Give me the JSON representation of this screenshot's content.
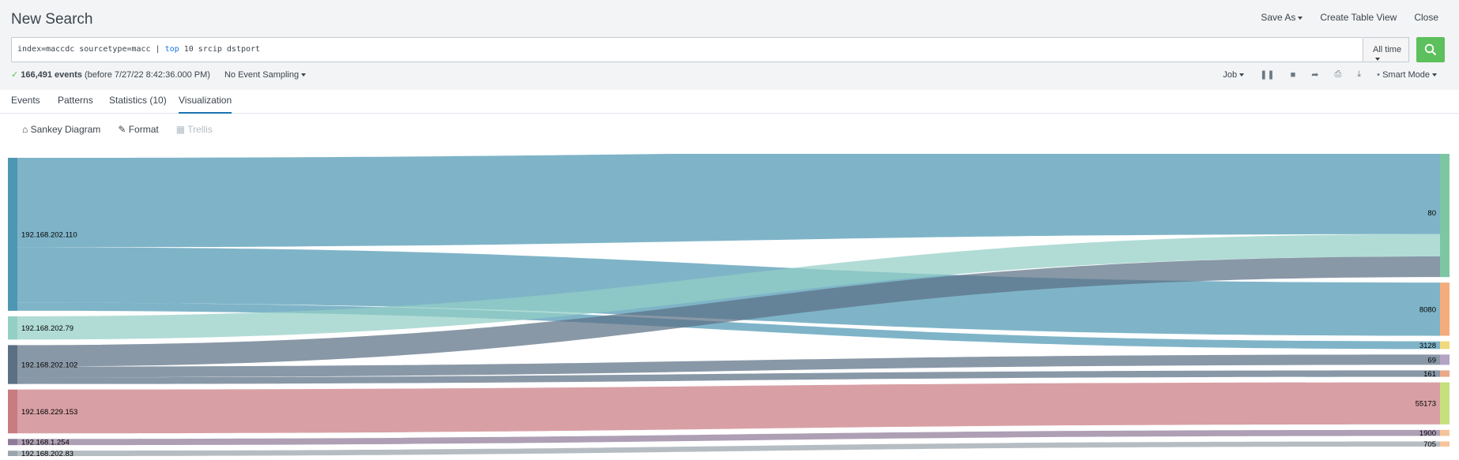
{
  "header": {
    "title": "New Search",
    "save_as": "Save As",
    "create_table_view": "Create Table View",
    "close": "Close"
  },
  "search": {
    "query_prefix": "index=maccdc sourcetype=macc | ",
    "query_keyword": "top",
    "query_suffix": " 10 srcip dstport",
    "time_range": "All time"
  },
  "status": {
    "event_count": "166,491 events",
    "time_note": "(before 7/27/22 8:42:36.000 PM)",
    "sampling": "No Event Sampling"
  },
  "job_controls": {
    "job": "Job",
    "mode": "Smart Mode"
  },
  "tabs": [
    {
      "label": "Events"
    },
    {
      "label": "Patterns"
    },
    {
      "label": "Statistics (10)"
    },
    {
      "label": "Visualization"
    }
  ],
  "viz_toolbar": {
    "type": "Sankey Diagram",
    "format": "Format",
    "trellis": "Trellis"
  },
  "chart_data": {
    "type": "sankey",
    "sources": [
      "192.168.202.110",
      "192.168.202.79",
      "192.168.202.102",
      "192.168.229.153",
      "192.168.1.254",
      "192.168.202.83"
    ],
    "targets": [
      "80",
      "8080",
      "3128",
      "69",
      "161",
      "55173",
      "1900",
      "705"
    ],
    "links": [
      {
        "source": "192.168.202.110",
        "target": "80",
        "value": 100000
      },
      {
        "source": "192.168.202.110",
        "target": "8080",
        "value": 62000
      },
      {
        "source": "192.168.202.110",
        "target": "3128",
        "value": 9000
      },
      {
        "source": "192.168.202.79",
        "target": "80",
        "value": 26000
      },
      {
        "source": "192.168.202.102",
        "target": "80",
        "value": 24000
      },
      {
        "source": "192.168.202.102",
        "target": "69",
        "value": 12000
      },
      {
        "source": "192.168.202.102",
        "target": "161",
        "value": 7500
      },
      {
        "source": "192.168.229.153",
        "target": "55173",
        "value": 49000
      },
      {
        "source": "192.168.1.254",
        "target": "1900",
        "value": 7000
      },
      {
        "source": "192.168.202.83",
        "target": "705",
        "value": 6000
      }
    ],
    "source_colors": [
      "#4e97b3",
      "#93cfc5",
      "#5c7085",
      "#c97b82",
      "#8f7a99",
      "#9aa4ab"
    ],
    "target_colors": [
      "#7dc6a3",
      "#f4ac7c",
      "#f0d97c",
      "#b4a3c4",
      "#e9a98a",
      "#c6e07c",
      "#f6c49a",
      "#f6c49a"
    ]
  }
}
